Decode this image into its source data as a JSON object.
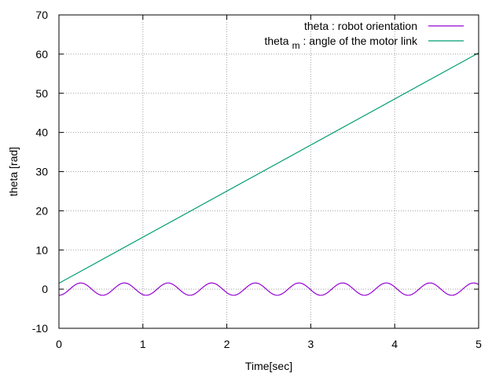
{
  "chart_data": {
    "type": "line",
    "xlabel": "Time[sec]",
    "ylabel": "theta [rad]",
    "xlim": [
      0,
      5
    ],
    "ylim": [
      -10,
      70
    ],
    "xticks": [
      "0",
      "1",
      "2",
      "3",
      "4",
      "5"
    ],
    "yticks": [
      "-10",
      "0",
      "10",
      "20",
      "30",
      "40",
      "50",
      "60",
      "70"
    ],
    "grid": true,
    "legend_position": "top-right",
    "series": [
      {
        "name": "theta : robot orientation",
        "legend_main": "theta",
        "legend_sub": "",
        "legend_rest": " : robot orientation",
        "color": "#9400d3",
        "kind": "sine",
        "amplitude": 1.57,
        "period": 0.52,
        "phase_value_at_x0": -1.57
      },
      {
        "name": "theta_m : angle of the motor link",
        "legend_main": "theta",
        "legend_sub": "m",
        "legend_rest": " : angle of the motor link",
        "color": "#009e73",
        "kind": "linear",
        "x": [
          0,
          5
        ],
        "y": [
          1.5,
          60.3
        ]
      }
    ]
  }
}
